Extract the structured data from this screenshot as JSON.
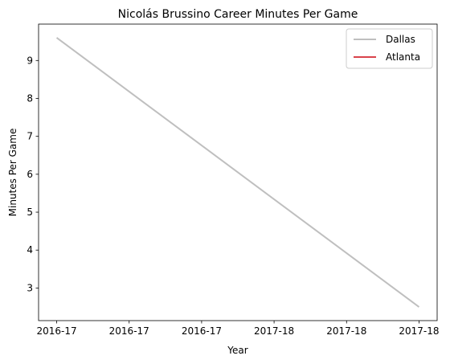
{
  "chart_data": {
    "type": "line",
    "title": "Nicolás Brussino Career Minutes Per Game",
    "xlabel": "Year",
    "ylabel": "Minutes Per Game",
    "x_tick_labels": [
      "2016-17",
      "2016-17",
      "2016-17",
      "2017-18",
      "2017-18",
      "2017-18"
    ],
    "x_range": [
      -0.05,
      1.05
    ],
    "y_ticks": [
      3,
      4,
      5,
      6,
      7,
      8,
      9
    ],
    "ylim": [
      2.14,
      9.96
    ],
    "grid": false,
    "legend_position": "top-right",
    "series": [
      {
        "name": "Dallas",
        "color": "#bfbfbf",
        "x": [
          0,
          1
        ],
        "values": [
          9.6,
          2.5
        ]
      },
      {
        "name": "Atlanta",
        "color": "#d9434b",
        "x": [],
        "values": []
      }
    ]
  }
}
